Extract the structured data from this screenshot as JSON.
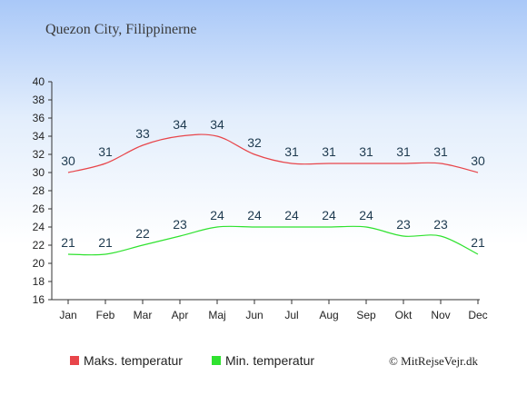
{
  "chart_data": {
    "type": "line",
    "title": "Quezon City, Filippinerne",
    "categories": [
      "Jan",
      "Feb",
      "Mar",
      "Apr",
      "Maj",
      "Jun",
      "Jul",
      "Aug",
      "Sep",
      "Okt",
      "Nov",
      "Dec"
    ],
    "series": [
      {
        "name": "Maks. temperatur",
        "color": "#e8454a",
        "values": [
          30,
          31,
          33,
          34,
          34,
          32,
          31,
          31,
          31,
          31,
          31,
          30
        ]
      },
      {
        "name": "Min. temperatur",
        "color": "#2fe22f",
        "values": [
          21,
          21,
          22,
          23,
          24,
          24,
          24,
          24,
          24,
          23,
          23,
          21
        ]
      }
    ],
    "ylim": [
      16,
      40
    ],
    "yticks": [
      16,
      18,
      20,
      22,
      24,
      26,
      28,
      30,
      32,
      34,
      36,
      38,
      40
    ],
    "grid": false,
    "legend_position": "bottom-left"
  },
  "copyright": "© MitRejseVejr.dk"
}
